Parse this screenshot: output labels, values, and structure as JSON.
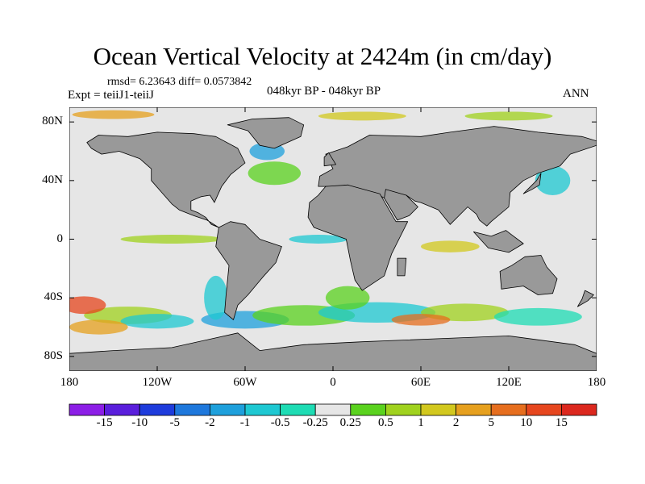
{
  "title": "Ocean Vertical Velocity at 2424m (in cm/day)",
  "stats": "rmsd= 6.23643 diff= 0.0573842",
  "experiment": "Expt = teiiJ1-teiiJ",
  "period": "048kyr BP - 048kyr BP",
  "season": "ANN",
  "map_data": {
    "projection": "cylindrical equidistant",
    "field": "ocean vertical velocity",
    "depth": "2424m",
    "units": "cm/day",
    "lon_range": [
      -180,
      180
    ],
    "lat_range": [
      -90,
      90
    ],
    "land_color": "#999999",
    "near_zero_color": "#e6e6e6",
    "y_ticks": [
      {
        "lat": 80,
        "label": "80N"
      },
      {
        "lat": 40,
        "label": "40N"
      },
      {
        "lat": 0,
        "label": "0"
      },
      {
        "lat": -40,
        "label": "40S"
      },
      {
        "lat": -80,
        "label": "80S"
      }
    ],
    "x_ticks": [
      {
        "lon": -180,
        "label": "180"
      },
      {
        "lon": -120,
        "label": "120W"
      },
      {
        "lon": -60,
        "label": "60W"
      },
      {
        "lon": 0,
        "label": "0"
      },
      {
        "lon": 60,
        "label": "60E"
      },
      {
        "lon": 120,
        "label": "120E"
      },
      {
        "lon": 180,
        "label": "180"
      }
    ]
  },
  "colorbar": {
    "labels": [
      "-15",
      "-10",
      "-5",
      "-2",
      "-1",
      "-0.5",
      "-0.25",
      "0.25",
      "0.5",
      "1",
      "2",
      "5",
      "10",
      "15"
    ],
    "colors": [
      "#8c1ee6",
      "#5a1edc",
      "#1e3cdc",
      "#1e78dc",
      "#1ea0dc",
      "#1ec8d2",
      "#1edcb4",
      "#e6e6e6",
      "#5ad21e",
      "#a0d21e",
      "#d2c81e",
      "#e6a01e",
      "#e66e1e",
      "#e6461e",
      "#dc281e"
    ]
  }
}
